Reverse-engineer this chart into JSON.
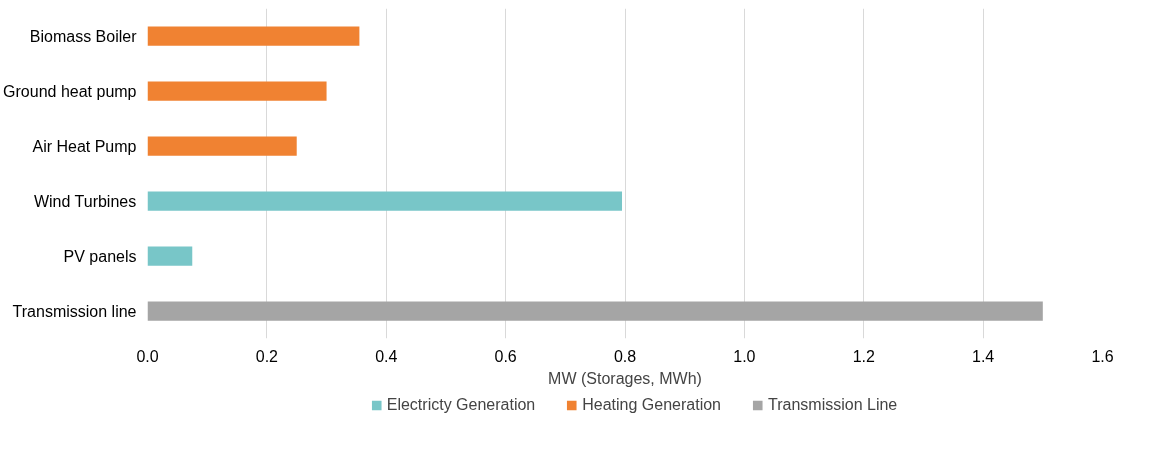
{
  "chart_data": {
    "type": "bar",
    "orientation": "horizontal",
    "xlabel": "MW (Storages, MWh)",
    "categories": [
      "Biomass Boiler",
      "Ground heat pump",
      "Air Heat Pump",
      "Wind Turbines",
      "PV panels",
      "Transmission line"
    ],
    "series": [
      {
        "name": "Electricty Generation",
        "color": "#78c6c8",
        "values": [
          null,
          null,
          null,
          0.795,
          0.075,
          null
        ]
      },
      {
        "name": "Heating Generation",
        "color": "#f08232",
        "values": [
          0.355,
          0.3,
          0.25,
          null,
          null,
          null
        ]
      },
      {
        "name": "Transmission Line",
        "color": "#a5a5a5",
        "values": [
          null,
          null,
          null,
          null,
          null,
          1.5
        ]
      }
    ],
    "xlim": [
      0,
      1.6
    ],
    "xticks": [
      {
        "value": 0,
        "label": "0.0"
      },
      {
        "value": 0.2,
        "label": "0.2"
      },
      {
        "value": 0.4,
        "label": "0.4"
      },
      {
        "value": 0.6,
        "label": "0.6"
      },
      {
        "value": 0.8,
        "label": "0.8"
      },
      {
        "value": 1.0,
        "label": "1.0"
      },
      {
        "value": 1.2,
        "label": "1.2"
      },
      {
        "value": 1.4,
        "label": "1.4"
      },
      {
        "value": 1.6,
        "label": "1.6"
      }
    ],
    "grid": "x",
    "legend": "bottom"
  }
}
